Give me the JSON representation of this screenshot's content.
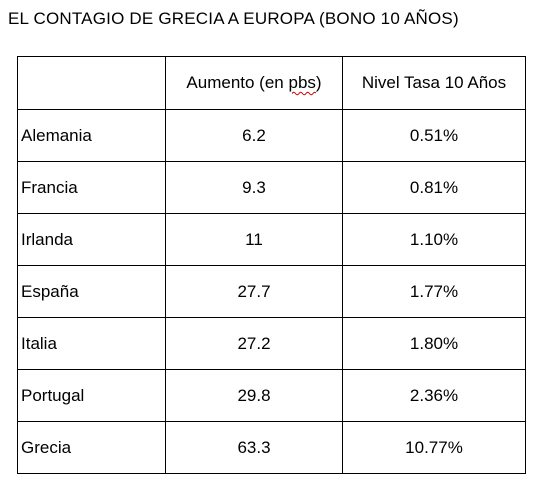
{
  "title": "EL CONTAGIO DE GRECIA A EUROPA (BONO 10 AÑOS)",
  "table": {
    "header": {
      "col0": "",
      "col1_prefix": "Aumento (en ",
      "col1_flagged": "pbs",
      "col1_suffix": ")",
      "col2": "Nivel Tasa 10 Años"
    },
    "rows": [
      {
        "country": "Alemania",
        "increase": "6.2",
        "rate": "0.51%"
      },
      {
        "country": "Francia",
        "increase": "9.3",
        "rate": "0.81%"
      },
      {
        "country": "Irlanda",
        "increase": "11",
        "rate": "1.10%"
      },
      {
        "country": "España",
        "increase": "27.7",
        "rate": "1.77%"
      },
      {
        "country": "Italia",
        "increase": "27.2",
        "rate": "1.80%"
      },
      {
        "country": "Portugal",
        "increase": "29.8",
        "rate": "2.36%"
      },
      {
        "country": "Grecia",
        "increase": "63.3",
        "rate": "10.77%"
      }
    ]
  },
  "colors": {
    "spellcheck_underline": "#cc0000"
  }
}
